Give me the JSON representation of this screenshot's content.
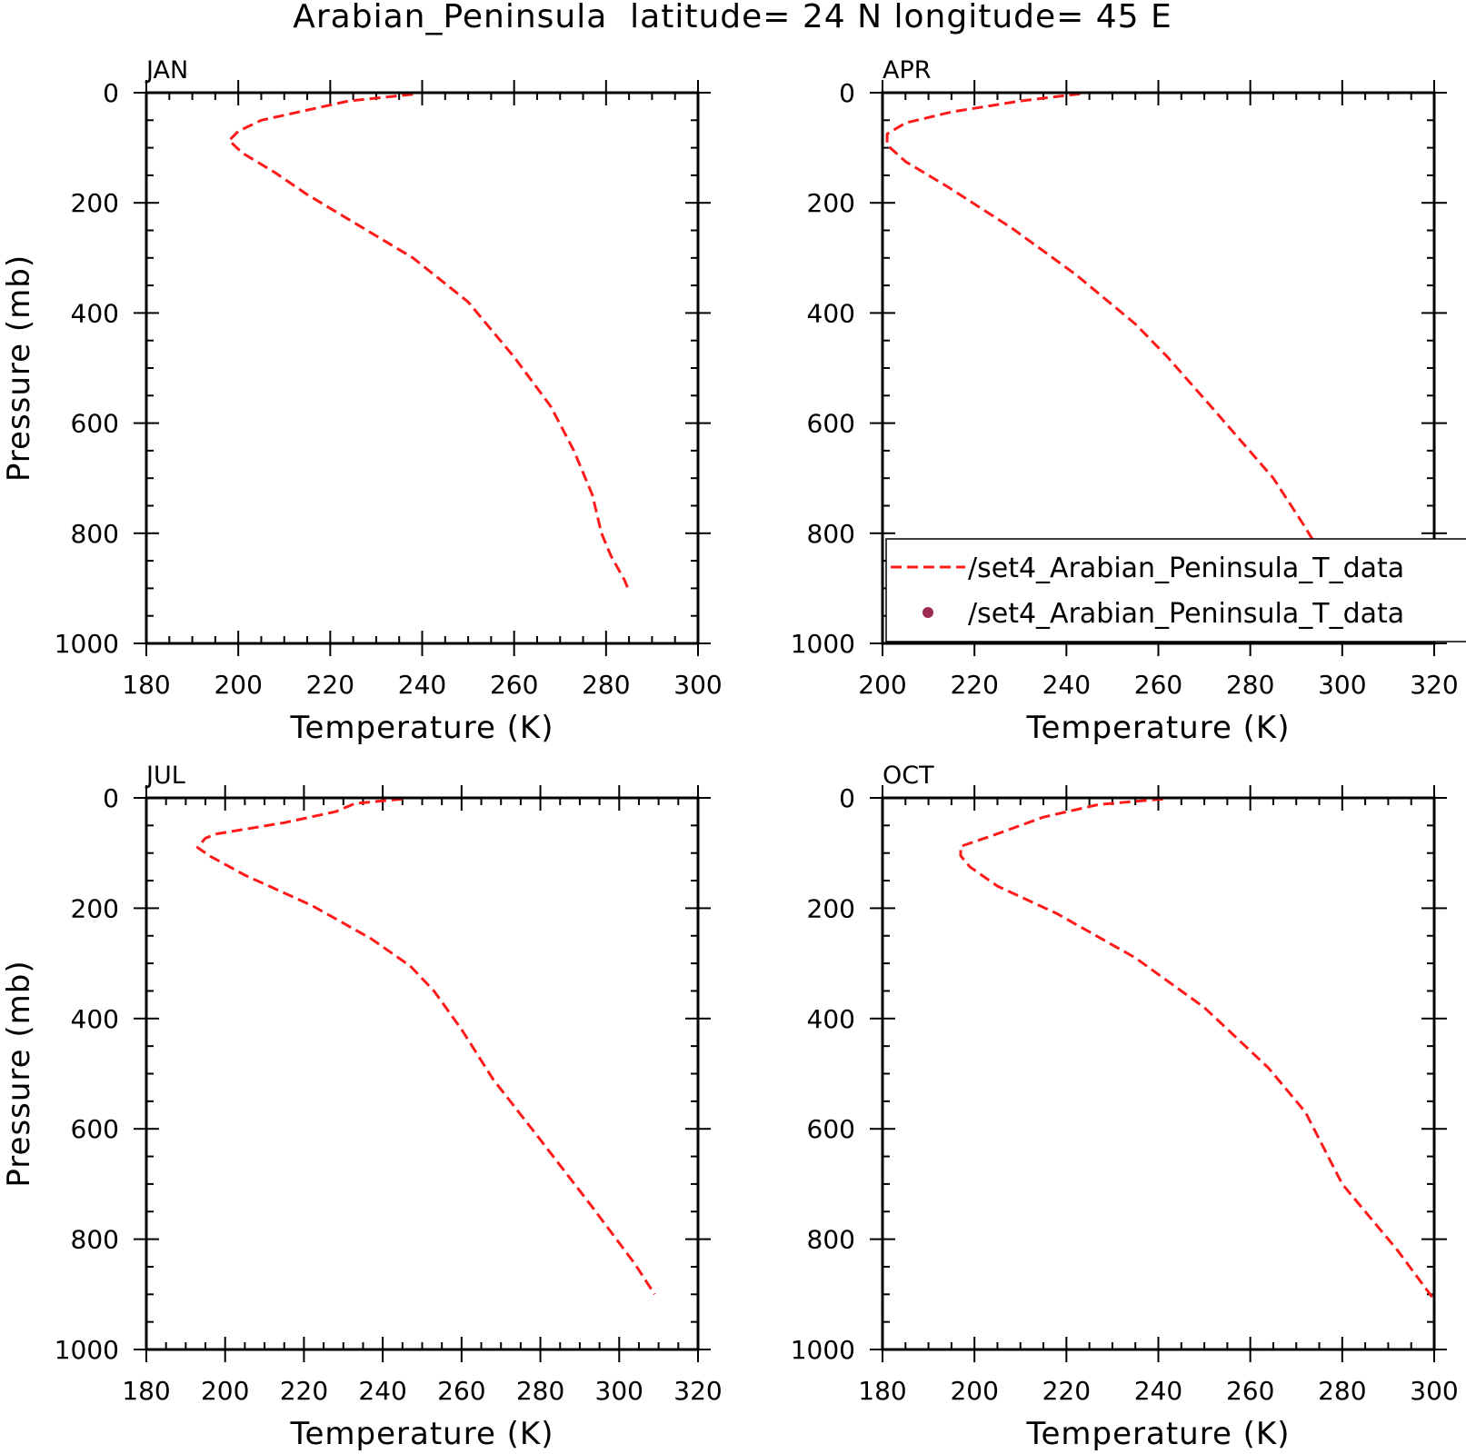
{
  "figure": {
    "title": "Arabian_Peninsula  latitude= 24 N longitude= 45 E"
  },
  "legend": {
    "entries": [
      {
        "label": "/set4_Arabian_Peninsula_T_data",
        "style": "dashed-line",
        "color": "#ff1a1a"
      },
      {
        "label": "/set4_Arabian_Peninsula_T_data",
        "style": "dot",
        "color": "#9c2a52"
      }
    ],
    "placement": "bottom-right of APR panel"
  },
  "chart_data": [
    {
      "type": "line",
      "panel": "JAN",
      "title": "JAN",
      "xlabel": "Temperature (K)",
      "ylabel": "Pressure (mb)",
      "xlim": [
        180,
        300
      ],
      "ylim": [
        1000,
        0
      ],
      "xticks": [
        180,
        200,
        220,
        240,
        260,
        280,
        300
      ],
      "yticks": [
        0,
        200,
        400,
        600,
        800,
        1000
      ],
      "series": [
        {
          "color": "#ff1a1a",
          "style": "dashed",
          "x": [
            238,
            224,
            205,
            200,
            198,
            201,
            208,
            215,
            225,
            238,
            250,
            260,
            268,
            273,
            277,
            279,
            281,
            284,
            285
          ],
          "y": [
            3,
            15,
            50,
            70,
            87,
            110,
            145,
            185,
            235,
            300,
            380,
            480,
            570,
            650,
            730,
            800,
            840,
            885,
            905
          ]
        }
      ]
    },
    {
      "type": "line",
      "panel": "APR",
      "title": "APR",
      "xlabel": "Temperature (K)",
      "ylabel": "",
      "xlim": [
        200,
        320
      ],
      "ylim": [
        1000,
        0
      ],
      "xticks": [
        200,
        220,
        240,
        260,
        280,
        300,
        320
      ],
      "yticks": [
        0,
        200,
        400,
        600,
        800,
        1000
      ],
      "series": [
        {
          "color": "#ff1a1a",
          "style": "dashed",
          "x": [
            243,
            230,
            215,
            205,
            201,
            201,
            205,
            214,
            228,
            242,
            255,
            262,
            272,
            285,
            292,
            297,
            300
          ],
          "y": [
            2,
            15,
            35,
            55,
            75,
            95,
            125,
            170,
            245,
            330,
            420,
            480,
            575,
            700,
            790,
            860,
            900
          ]
        }
      ]
    },
    {
      "type": "line",
      "panel": "JUL",
      "title": "JUL",
      "xlabel": "Temperature (K)",
      "ylabel": "Pressure (mb)",
      "xlim": [
        180,
        320
      ],
      "ylim": [
        1000,
        0
      ],
      "xticks": [
        180,
        200,
        220,
        240,
        260,
        280,
        300,
        320
      ],
      "yticks": [
        0,
        200,
        400,
        600,
        800,
        1000
      ],
      "series": [
        {
          "color": "#ff1a1a",
          "style": "dashed",
          "x": [
            245,
            233,
            228,
            215,
            198,
            195,
            193,
            196,
            205,
            222,
            237,
            247,
            253,
            260,
            268,
            280,
            293,
            304,
            309
          ],
          "y": [
            2,
            10,
            25,
            45,
            65,
            73,
            90,
            105,
            140,
            195,
            255,
            305,
            350,
            420,
            510,
            620,
            740,
            845,
            900
          ]
        }
      ]
    },
    {
      "type": "line",
      "panel": "OCT",
      "title": "OCT",
      "xlabel": "Temperature (K)",
      "ylabel": "",
      "xlim": [
        180,
        300
      ],
      "ylim": [
        1000,
        0
      ],
      "xticks": [
        180,
        200,
        220,
        240,
        260,
        280,
        300
      ],
      "yticks": [
        0,
        200,
        400,
        600,
        800,
        1000
      ],
      "series": [
        {
          "color": "#ff1a1a",
          "style": "dashed",
          "x": [
            241,
            227,
            215,
            205,
            197,
            197,
            199,
            205,
            218,
            235,
            250,
            264,
            272,
            280,
            292,
            300
          ],
          "y": [
            2,
            12,
            35,
            65,
            88,
            105,
            125,
            160,
            210,
            290,
            380,
            490,
            570,
            700,
            820,
            910
          ]
        }
      ]
    }
  ]
}
